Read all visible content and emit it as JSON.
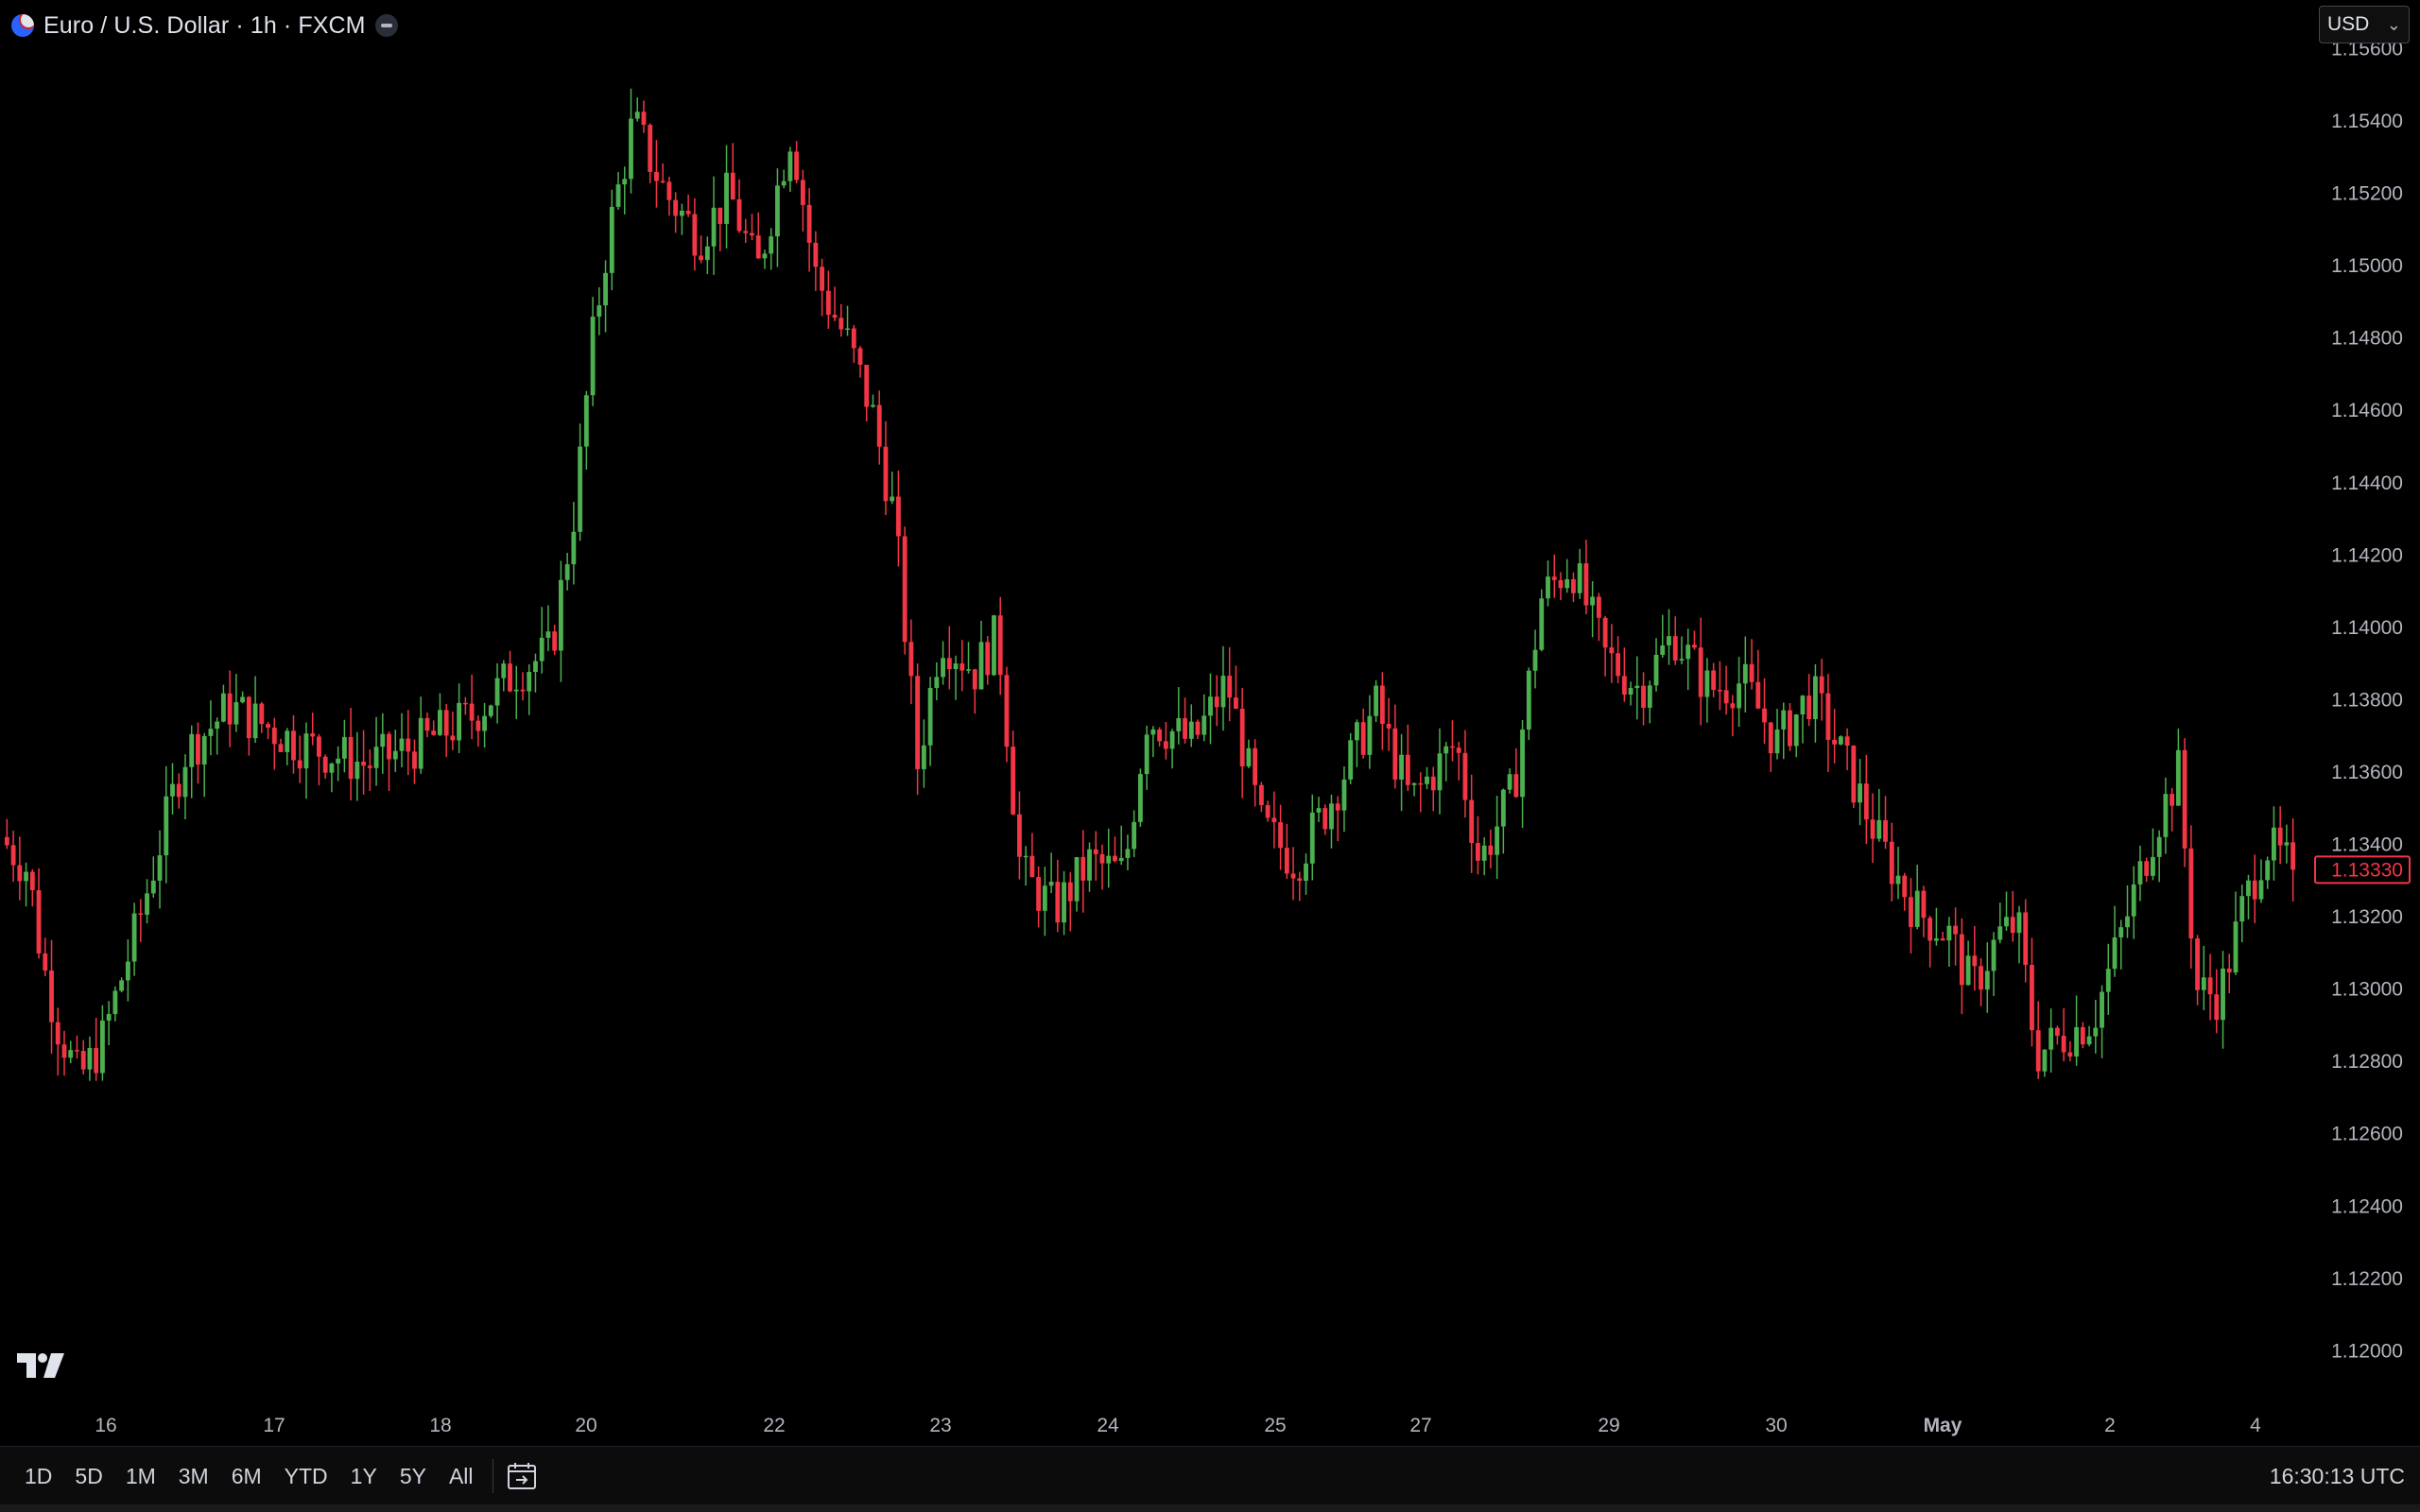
{
  "header": {
    "title": "Euro / U.S. Dollar · 1h · FXCM",
    "currency": "USD"
  },
  "toolbar": {
    "ranges": [
      "1D",
      "5D",
      "1M",
      "3M",
      "6M",
      "YTD",
      "1Y",
      "5Y",
      "All"
    ],
    "time": "16:30:13 UTC"
  },
  "colors": {
    "up": "#4caf50",
    "down": "#f23645",
    "axis_text": "#b2b5be",
    "background": "#000000"
  },
  "icons": {
    "symbol": "eur-usd-flag-icon",
    "logo": "tradingview-logo-icon",
    "date_range": "calendar-goto-icon"
  },
  "chart_data": {
    "type": "candlestick",
    "title": "Euro / U.S. Dollar · 1h · FXCM",
    "ylim": [
      1.1192,
      1.1563
    ],
    "y_ticks": [
      "1.15600",
      "1.15400",
      "1.15200",
      "1.15000",
      "1.14800",
      "1.14600",
      "1.14400",
      "1.14200",
      "1.14000",
      "1.13800",
      "1.13600",
      "1.13400",
      "1.13200",
      "1.13000",
      "1.12800",
      "1.12600",
      "1.12400",
      "1.12200",
      "1.12000"
    ],
    "x_ticks": [
      "16",
      "17",
      "18",
      "20",
      "22",
      "23",
      "24",
      "25",
      "27",
      "29",
      "30",
      "May",
      "2",
      "4"
    ],
    "last_price": "1.13330",
    "grid": false,
    "anchors": [
      {
        "t": 0,
        "v": 1.1342
      },
      {
        "t": 0.012,
        "v": 1.1333
      },
      {
        "t": 0.018,
        "v": 1.1308
      },
      {
        "t": 0.025,
        "v": 1.129
      },
      {
        "t": 0.034,
        "v": 1.1275
      },
      {
        "t": 0.044,
        "v": 1.1285
      },
      {
        "t": 0.06,
        "v": 1.1318
      },
      {
        "t": 0.08,
        "v": 1.1365
      },
      {
        "t": 0.1,
        "v": 1.1378
      },
      {
        "t": 0.13,
        "v": 1.1368
      },
      {
        "t": 0.16,
        "v": 1.1362
      },
      {
        "t": 0.18,
        "v": 1.1367
      },
      {
        "t": 0.205,
        "v": 1.1375
      },
      {
        "t": 0.225,
        "v": 1.1388
      },
      {
        "t": 0.24,
        "v": 1.1393
      },
      {
        "t": 0.251,
        "v": 1.1435
      },
      {
        "t": 0.258,
        "v": 1.1478
      },
      {
        "t": 0.265,
        "v": 1.1508
      },
      {
        "t": 0.276,
        "v": 1.154
      },
      {
        "t": 0.29,
        "v": 1.152
      },
      {
        "t": 0.305,
        "v": 1.1508
      },
      {
        "t": 0.318,
        "v": 1.152
      },
      {
        "t": 0.33,
        "v": 1.1498
      },
      {
        "t": 0.345,
        "v": 1.1538
      },
      {
        "t": 0.355,
        "v": 1.1498
      },
      {
        "t": 0.37,
        "v": 1.1478
      },
      {
        "t": 0.38,
        "v": 1.146
      },
      {
        "t": 0.39,
        "v": 1.143
      },
      {
        "t": 0.4,
        "v": 1.1362
      },
      {
        "t": 0.41,
        "v": 1.1398
      },
      {
        "t": 0.425,
        "v": 1.1388
      },
      {
        "t": 0.435,
        "v": 1.1398
      },
      {
        "t": 0.445,
        "v": 1.1332
      },
      {
        "t": 0.46,
        "v": 1.1322
      },
      {
        "t": 0.475,
        "v": 1.1335
      },
      {
        "t": 0.49,
        "v": 1.1332
      },
      {
        "t": 0.5,
        "v": 1.1375
      },
      {
        "t": 0.52,
        "v": 1.1368
      },
      {
        "t": 0.535,
        "v": 1.1385
      },
      {
        "t": 0.55,
        "v": 1.1345
      },
      {
        "t": 0.565,
        "v": 1.1335
      },
      {
        "t": 0.58,
        "v": 1.1352
      },
      {
        "t": 0.6,
        "v": 1.1378
      },
      {
        "t": 0.615,
        "v": 1.1352
      },
      {
        "t": 0.635,
        "v": 1.1368
      },
      {
        "t": 0.645,
        "v": 1.1335
      },
      {
        "t": 0.66,
        "v": 1.1355
      },
      {
        "t": 0.672,
        "v": 1.1408
      },
      {
        "t": 0.685,
        "v": 1.1418
      },
      {
        "t": 0.7,
        "v": 1.1392
      },
      {
        "t": 0.715,
        "v": 1.1383
      },
      {
        "t": 0.73,
        "v": 1.1398
      },
      {
        "t": 0.745,
        "v": 1.1383
      },
      {
        "t": 0.76,
        "v": 1.1385
      },
      {
        "t": 0.775,
        "v": 1.1368
      },
      {
        "t": 0.79,
        "v": 1.1382
      },
      {
        "t": 0.805,
        "v": 1.1362
      },
      {
        "t": 0.82,
        "v": 1.134
      },
      {
        "t": 0.835,
        "v": 1.1322
      },
      {
        "t": 0.85,
        "v": 1.1315
      },
      {
        "t": 0.86,
        "v": 1.13
      },
      {
        "t": 0.872,
        "v": 1.1315
      },
      {
        "t": 0.88,
        "v": 1.1318
      },
      {
        "t": 0.888,
        "v": 1.1282
      },
      {
        "t": 0.9,
        "v": 1.1287
      },
      {
        "t": 0.913,
        "v": 1.1292
      },
      {
        "t": 0.925,
        "v": 1.1315
      },
      {
        "t": 0.94,
        "v": 1.1345
      },
      {
        "t": 0.95,
        "v": 1.136
      },
      {
        "t": 0.958,
        "v": 1.13
      },
      {
        "t": 0.968,
        "v": 1.1298
      },
      {
        "t": 0.978,
        "v": 1.1322
      },
      {
        "t": 0.988,
        "v": 1.134
      },
      {
        "t": 1.0,
        "v": 1.1333
      }
    ]
  }
}
